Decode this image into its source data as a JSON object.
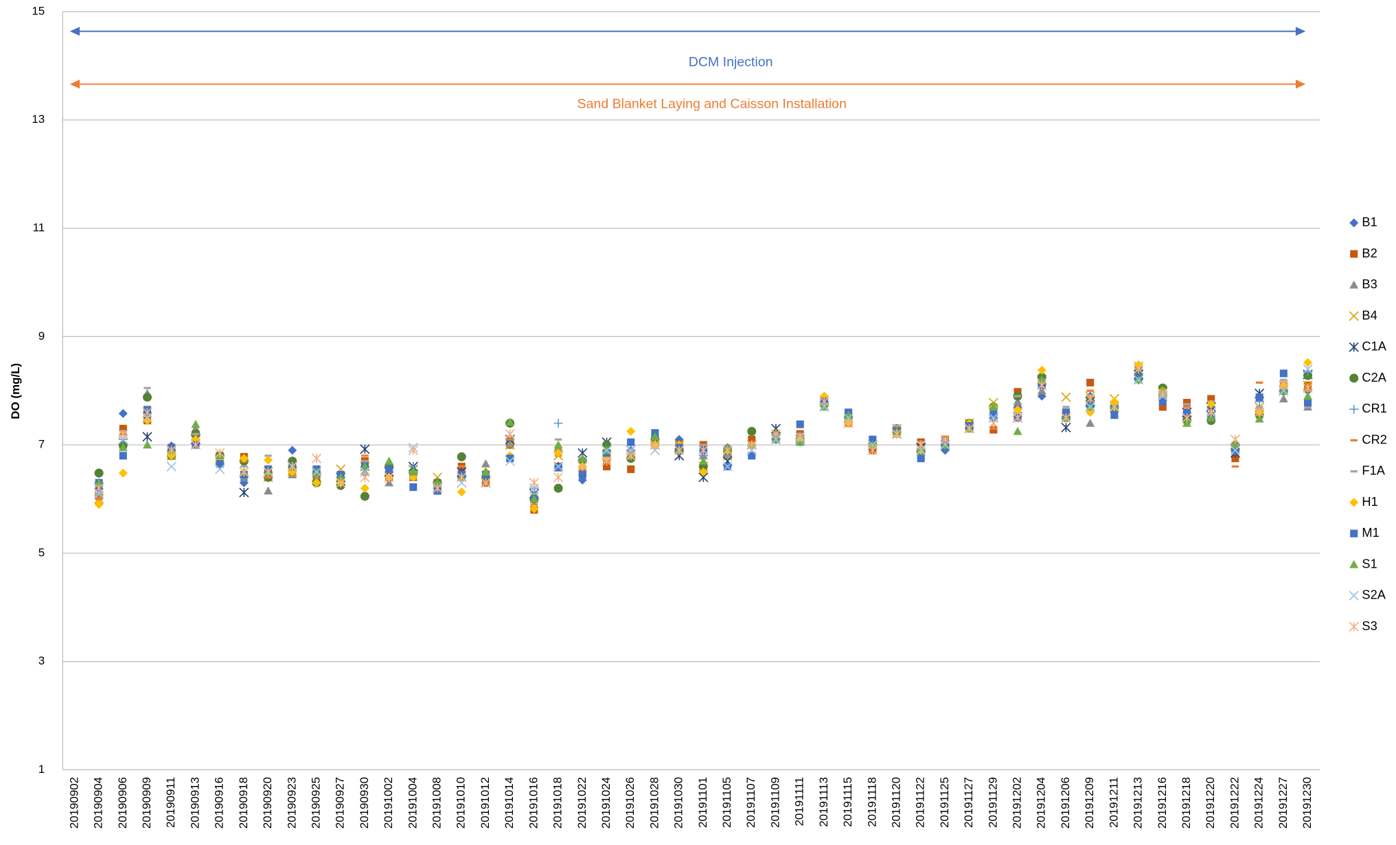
{
  "chart_data": {
    "type": "scatter",
    "y_label": "DO (mg/L)",
    "ylim": [
      1,
      15
    ],
    "yticks": [
      1,
      3,
      5,
      7,
      9,
      11,
      13,
      15
    ],
    "grid": true,
    "legend": "right",
    "annotations": [
      {
        "text": "DCM Injection",
        "color": "#4472c4"
      },
      {
        "text": "Sand Blanket Laying and Caisson Installation",
        "color": "#ed7d31"
      }
    ],
    "categories": [
      "20190902",
      "20190904",
      "20190906",
      "20190909",
      "20190911",
      "20190913",
      "20190916",
      "20190918",
      "20190920",
      "20190923",
      "20190925",
      "20190927",
      "20190930",
      "20191002",
      "20191004",
      "20191008",
      "20191010",
      "20191012",
      "20191014",
      "20191016",
      "20191018",
      "20191022",
      "20191024",
      "20191026",
      "20191028",
      "20191030",
      "20191101",
      "20191105",
      "20191107",
      "20191109",
      "20191111",
      "20191113",
      "20191115",
      "20191118",
      "20191120",
      "20191122",
      "20191125",
      "20191127",
      "20191129",
      "20191202",
      "20191204",
      "20191206",
      "20191209",
      "20191211",
      "20191213",
      "20191216",
      "20191218",
      "20191220",
      "20191222",
      "20191224",
      "20191227",
      "20191230"
    ],
    "series": [
      {
        "name": "B1",
        "color": "#4472c4",
        "marker": "diamond",
        "values": [
          null,
          6.2,
          7.58,
          7.6,
          6.98,
          7.1,
          6.7,
          6.3,
          6.5,
          6.9,
          6.5,
          6.4,
          6.6,
          6.6,
          6.5,
          6.2,
          6.5,
          6.3,
          7.1,
          6.0,
          6.6,
          6.35,
          6.8,
          6.9,
          7.05,
          7.1,
          6.9,
          6.95,
          7.0,
          7.1,
          7.05,
          7.75,
          7.5,
          6.95,
          7.3,
          6.9,
          6.9,
          7.3,
          7.5,
          7.7,
          7.9,
          7.6,
          7.9,
          7.6,
          8.3,
          7.9,
          7.5,
          7.7,
          6.9,
          7.6,
          8.1,
          8.0
        ]
      },
      {
        "name": "B2",
        "color": "#c55a11",
        "marker": "square",
        "values": [
          null,
          6.05,
          7.3,
          7.45,
          6.8,
          7.2,
          6.8,
          6.78,
          6.4,
          6.5,
          6.4,
          6.3,
          6.7,
          6.4,
          6.4,
          6.3,
          6.6,
          6.3,
          7.0,
          5.8,
          6.6,
          6.5,
          6.6,
          6.55,
          7.0,
          7.0,
          7.0,
          6.8,
          7.1,
          7.2,
          7.2,
          7.8,
          7.4,
          6.9,
          7.3,
          7.05,
          7.1,
          7.3,
          7.28,
          7.98,
          8.1,
          7.6,
          8.15,
          7.7,
          8.4,
          7.7,
          7.78,
          7.85,
          6.75,
          7.6,
          8.1,
          8.1
        ]
      },
      {
        "name": "B3",
        "color": "#8c8c8c",
        "marker": "triangle",
        "values": [
          null,
          6.1,
          7.0,
          7.95,
          6.85,
          7.3,
          6.8,
          6.4,
          6.15,
          6.45,
          6.4,
          6.3,
          6.5,
          6.3,
          6.4,
          6.2,
          6.4,
          6.65,
          7.05,
          6.0,
          6.95,
          6.5,
          6.8,
          6.8,
          7.1,
          7.0,
          6.8,
          6.8,
          7.0,
          7.1,
          7.05,
          7.7,
          7.5,
          7.0,
          7.2,
          6.9,
          7.0,
          7.3,
          7.6,
          7.8,
          8.0,
          7.5,
          7.4,
          7.7,
          8.3,
          7.9,
          7.5,
          7.6,
          6.95,
          7.6,
          7.85,
          7.7
        ]
      },
      {
        "name": "B4",
        "color": "#e0a30e",
        "marker": "x",
        "values": [
          null,
          6.0,
          7.1,
          7.5,
          6.8,
          7.1,
          6.75,
          6.5,
          6.4,
          6.5,
          6.4,
          6.55,
          6.6,
          6.5,
          6.55,
          6.4,
          6.5,
          6.3,
          7.0,
          6.1,
          6.8,
          6.6,
          6.8,
          6.9,
          7.0,
          7.0,
          6.6,
          6.8,
          7.0,
          7.2,
          7.1,
          7.8,
          7.4,
          7.0,
          7.3,
          7.0,
          7.0,
          7.4,
          7.78,
          7.6,
          8.2,
          7.88,
          7.9,
          7.85,
          8.45,
          8.0,
          7.6,
          7.7,
          6.95,
          7.7,
          8.1,
          8.1
        ]
      },
      {
        "name": "C1A",
        "color": "#264478",
        "marker": "asterisk",
        "values": [
          null,
          6.2,
          7.2,
          7.15,
          6.9,
          7.1,
          6.7,
          6.12,
          6.5,
          6.6,
          6.5,
          6.4,
          6.92,
          6.5,
          6.6,
          6.2,
          6.5,
          6.3,
          7.1,
          6.1,
          6.6,
          6.85,
          7.05,
          6.8,
          7.0,
          6.8,
          6.4,
          6.7,
          7.0,
          7.3,
          7.1,
          7.8,
          7.5,
          7.0,
          7.2,
          6.95,
          7.0,
          7.3,
          7.5,
          7.5,
          8.1,
          7.32,
          7.8,
          7.7,
          8.3,
          7.9,
          7.6,
          7.7,
          6.85,
          7.95,
          8.0,
          8.3
        ]
      },
      {
        "name": "C2A",
        "color": "#548235",
        "marker": "circle",
        "values": [
          null,
          6.48,
          7.0,
          7.88,
          6.8,
          7.2,
          6.8,
          6.7,
          6.4,
          6.7,
          6.3,
          6.25,
          6.05,
          6.6,
          6.5,
          6.3,
          6.78,
          6.4,
          7.4,
          6.0,
          6.2,
          6.7,
          7.0,
          6.75,
          7.1,
          6.9,
          6.6,
          6.9,
          7.25,
          7.2,
          7.1,
          7.75,
          7.5,
          7.0,
          7.3,
          6.9,
          7.0,
          7.4,
          7.7,
          7.9,
          8.25,
          7.5,
          7.8,
          7.7,
          8.3,
          8.05,
          7.45,
          7.45,
          7.0,
          7.55,
          8.0,
          8.28
        ]
      },
      {
        "name": "CR1",
        "color": "#5b9bd5",
        "marker": "plus",
        "values": [
          null,
          6.3,
          7.1,
          7.6,
          6.9,
          7.1,
          6.65,
          6.4,
          6.5,
          6.6,
          6.45,
          6.4,
          6.6,
          6.5,
          6.6,
          6.2,
          6.4,
          6.4,
          7.0,
          6.2,
          7.4,
          6.6,
          6.9,
          6.9,
          7.0,
          6.9,
          6.8,
          6.8,
          7.0,
          7.1,
          7.1,
          7.8,
          7.5,
          7.0,
          7.25,
          6.9,
          7.0,
          7.3,
          7.5,
          7.6,
          8.1,
          7.5,
          7.7,
          7.7,
          8.2,
          7.9,
          7.6,
          7.6,
          6.9,
          7.8,
          8.0,
          8.35
        ]
      },
      {
        "name": "CR2",
        "color": "#ed7d31",
        "marker": "dash",
        "values": [
          null,
          6.0,
          7.2,
          7.45,
          6.8,
          7.2,
          6.8,
          6.7,
          6.4,
          6.5,
          6.6,
          6.3,
          6.8,
          6.5,
          6.4,
          6.2,
          6.6,
          6.3,
          7.1,
          5.9,
          6.8,
          6.5,
          6.7,
          6.8,
          7.0,
          7.0,
          6.9,
          6.9,
          7.0,
          7.2,
          7.2,
          7.8,
          7.4,
          7.0,
          7.3,
          7.05,
          7.1,
          7.3,
          7.3,
          7.9,
          8.2,
          7.6,
          8.0,
          7.8,
          8.4,
          7.8,
          7.7,
          7.8,
          6.6,
          8.15,
          8.1,
          8.0
        ]
      },
      {
        "name": "F1A",
        "color": "#a5a5a5",
        "marker": "dash",
        "values": [
          null,
          6.1,
          7.25,
          8.05,
          6.9,
          7.2,
          6.8,
          6.6,
          6.8,
          6.5,
          6.6,
          6.3,
          6.7,
          6.4,
          6.5,
          6.3,
          6.5,
          6.5,
          7.15,
          6.1,
          7.1,
          6.6,
          6.9,
          6.9,
          7.0,
          7.0,
          7.0,
          6.9,
          7.0,
          7.2,
          7.2,
          7.8,
          7.5,
          7.1,
          7.35,
          7.05,
          7.1,
          7.4,
          7.6,
          7.9,
          8.2,
          7.7,
          7.9,
          7.8,
          8.4,
          7.9,
          7.75,
          7.8,
          7.0,
          7.7,
          8.2,
          7.7
        ]
      },
      {
        "name": "H1",
        "color": "#ffc000",
        "marker": "diamond",
        "values": [
          null,
          5.9,
          6.48,
          7.45,
          6.8,
          7.1,
          6.7,
          6.75,
          6.72,
          6.5,
          6.3,
          6.3,
          6.2,
          6.4,
          6.4,
          6.2,
          6.13,
          6.5,
          6.8,
          5.82,
          6.85,
          6.6,
          6.8,
          7.25,
          7.0,
          7.0,
          6.5,
          6.9,
          7.0,
          7.1,
          7.1,
          7.9,
          7.4,
          7.0,
          7.2,
          6.9,
          7.0,
          7.4,
          7.7,
          7.65,
          8.38,
          7.6,
          7.6,
          7.8,
          8.48,
          8.0,
          7.6,
          7.75,
          6.9,
          7.6,
          8.1,
          8.52
        ]
      },
      {
        "name": "M1",
        "color": "#4472c4",
        "marker": "square",
        "values": [
          null,
          6.3,
          6.8,
          7.65,
          6.95,
          7.0,
          6.65,
          6.45,
          6.55,
          6.6,
          6.55,
          6.45,
          6.6,
          6.55,
          6.22,
          6.15,
          6.45,
          6.45,
          6.75,
          6.0,
          6.58,
          6.45,
          6.85,
          7.05,
          7.22,
          6.95,
          6.9,
          6.6,
          6.8,
          7.1,
          7.38,
          7.8,
          7.6,
          7.1,
          7.25,
          6.75,
          7.0,
          7.35,
          7.6,
          7.5,
          8.1,
          7.6,
          7.75,
          7.55,
          8.25,
          7.8,
          7.6,
          7.5,
          6.9,
          7.88,
          8.32,
          7.78
        ]
      },
      {
        "name": "S1",
        "color": "#70ad47",
        "marker": "triangle",
        "values": [
          null,
          6.3,
          6.95,
          7.0,
          6.9,
          7.38,
          6.8,
          6.5,
          6.5,
          6.6,
          6.5,
          6.4,
          6.6,
          6.7,
          6.5,
          6.3,
          6.4,
          6.5,
          7.42,
          6.0,
          7.0,
          6.75,
          6.9,
          6.8,
          7.15,
          6.9,
          6.7,
          6.95,
          7.0,
          7.1,
          7.05,
          7.7,
          7.55,
          7.0,
          7.25,
          6.95,
          7.0,
          7.3,
          7.7,
          7.25,
          8.2,
          7.5,
          7.7,
          7.7,
          8.2,
          8.0,
          7.4,
          7.5,
          7.0,
          7.48,
          8.0,
          7.9
        ]
      },
      {
        "name": "S2A",
        "color": "#9dc3e6",
        "marker": "x",
        "values": [
          null,
          6.1,
          7.1,
          7.5,
          6.6,
          7.0,
          6.55,
          6.5,
          6.5,
          6.6,
          6.5,
          6.3,
          6.5,
          6.4,
          6.95,
          6.2,
          6.3,
          6.3,
          6.7,
          6.2,
          6.6,
          6.6,
          6.9,
          6.9,
          6.9,
          6.9,
          6.9,
          6.6,
          6.9,
          7.1,
          7.1,
          7.7,
          7.5,
          7.0,
          7.2,
          6.9,
          7.0,
          7.3,
          7.5,
          7.5,
          8.1,
          7.5,
          7.7,
          7.7,
          8.2,
          7.9,
          7.5,
          7.6,
          6.9,
          7.6,
          8.0,
          8.4
        ]
      },
      {
        "name": "S3",
        "color": "#f4b183",
        "marker": "asterisk",
        "values": [
          null,
          6.2,
          7.2,
          7.6,
          6.9,
          7.0,
          6.85,
          6.5,
          6.5,
          6.6,
          6.75,
          6.3,
          6.4,
          6.4,
          6.9,
          6.2,
          6.4,
          6.3,
          7.2,
          6.3,
          6.4,
          6.6,
          6.7,
          6.8,
          7.0,
          6.9,
          6.9,
          6.9,
          7.0,
          7.2,
          7.15,
          7.8,
          7.4,
          6.9,
          7.2,
          7.0,
          7.1,
          7.3,
          7.4,
          7.5,
          8.1,
          7.5,
          7.85,
          7.7,
          8.4,
          7.95,
          7.5,
          7.6,
          7.1,
          7.6,
          8.1,
          8.05
        ]
      }
    ]
  }
}
